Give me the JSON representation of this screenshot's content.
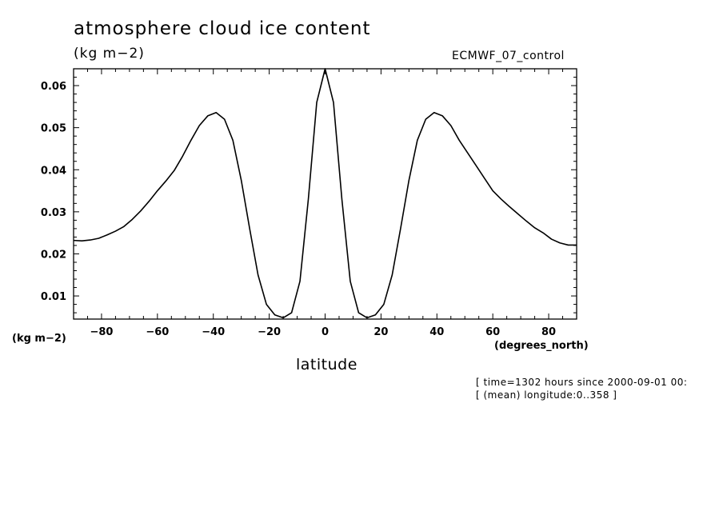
{
  "chart_data": {
    "type": "line",
    "title": "atmosphere cloud ice content",
    "units": "(kg m−2)",
    "dataset": "ECMWF_07_control",
    "xlabel": "latitude",
    "x_unit": "(degrees_north)",
    "y_unit": "(kg m−2)",
    "xlim": [
      -90,
      90
    ],
    "ylim": [
      0.0045,
      0.064
    ],
    "x_ticks": [
      -80,
      -60,
      -40,
      -20,
      0,
      20,
      40,
      60,
      80
    ],
    "x_tick_labels": [
      "−80",
      "−60",
      "−40",
      "−20",
      "0",
      "20",
      "40",
      "60",
      "80"
    ],
    "y_ticks": [
      0.01,
      0.02,
      0.03,
      0.04,
      0.05,
      0.06
    ],
    "y_tick_labels": [
      "0.01",
      "0.02",
      "0.03",
      "0.04",
      "0.05",
      "0.06"
    ],
    "grid": false,
    "series": [
      {
        "x": [
          -90,
          -87,
          -84,
          -81,
          -78,
          -75,
          -72,
          -69,
          -66,
          -63,
          -60,
          -57,
          -54,
          -51,
          -48,
          -45,
          -42,
          -39,
          -36,
          -33,
          -30,
          -27,
          -24,
          -21,
          -18,
          -15,
          -12,
          -9,
          -6,
          -3,
          0,
          3,
          6,
          9,
          12,
          15,
          18,
          21,
          24,
          27,
          30,
          33,
          36,
          39,
          42,
          45,
          48,
          51,
          54,
          57,
          60,
          63,
          66,
          69,
          72,
          75,
          78,
          81,
          84,
          87,
          90
        ],
        "y": [
          0.0232,
          0.0231,
          0.0233,
          0.0237,
          0.0245,
          0.0254,
          0.0265,
          0.0282,
          0.0302,
          0.0325,
          0.035,
          0.0373,
          0.0398,
          0.0432,
          0.047,
          0.0505,
          0.0528,
          0.0536,
          0.052,
          0.047,
          0.0375,
          0.026,
          0.015,
          0.008,
          0.0055,
          0.0048,
          0.006,
          0.0135,
          0.033,
          0.056,
          0.064,
          0.056,
          0.033,
          0.0135,
          0.006,
          0.0048,
          0.0055,
          0.008,
          0.015,
          0.026,
          0.0375,
          0.047,
          0.052,
          0.0536,
          0.0528,
          0.0505,
          0.047,
          0.044,
          0.041,
          0.038,
          0.035,
          0.033,
          0.0312,
          0.0295,
          0.0278,
          0.0262,
          0.025,
          0.0235,
          0.0226,
          0.0221,
          0.0221
        ]
      }
    ]
  },
  "notes": {
    "line1": "[ time=1302 hours since 2000-09-01 00:",
    "line2": "[ (mean) longitude:0..358 ]"
  },
  "colors": {
    "line": "#000000",
    "axes": "#000000",
    "background": "#ffffff"
  }
}
